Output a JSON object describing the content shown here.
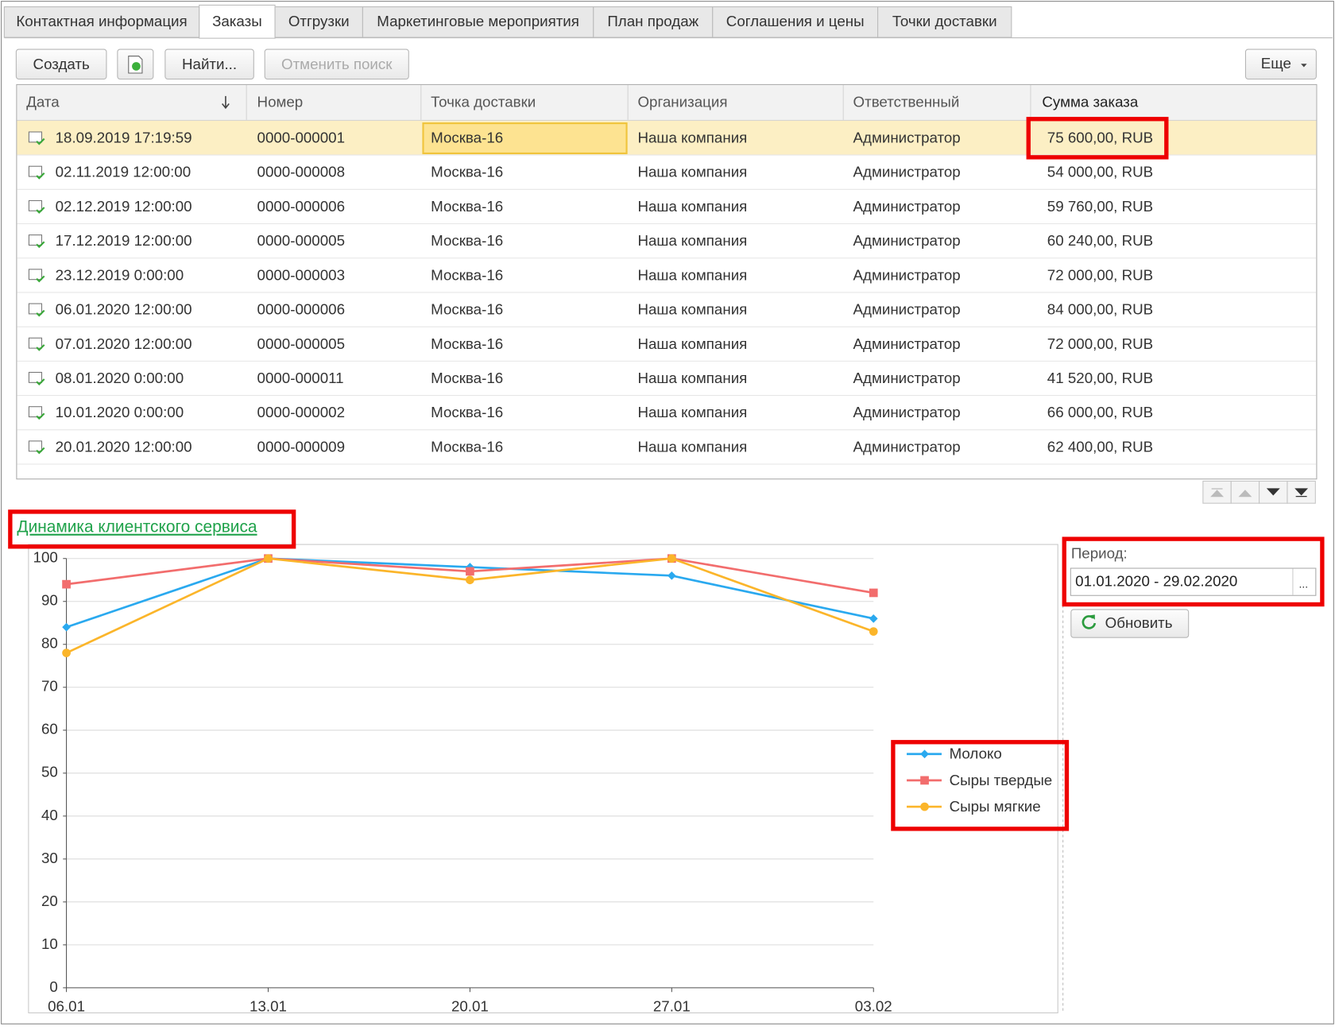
{
  "tabs": [
    "Контактная информация",
    "Заказы",
    "Отгрузки",
    "Маркетинговые мероприятия",
    "План продаж",
    "Соглашения и цены",
    "Точки доставки"
  ],
  "toolbar": {
    "create": "Создать",
    "find": "Найти...",
    "cancel_search": "Отменить поиск",
    "more": "Еще"
  },
  "table": {
    "columns": [
      "Дата",
      "Номер",
      "Точка доставки",
      "Организация",
      "Ответственный",
      "Сумма заказа"
    ],
    "rows": [
      [
        "18.09.2019 17:19:59",
        "0000-000001",
        "Москва-16",
        "Наша компания",
        "Администратор",
        "75 600,00, RUB"
      ],
      [
        "02.11.2019 12:00:00",
        "0000-000008",
        "Москва-16",
        "Наша компания",
        "Администратор",
        "54 000,00, RUB"
      ],
      [
        "02.12.2019 12:00:00",
        "0000-000006",
        "Москва-16",
        "Наша компания",
        "Администратор",
        "59 760,00, RUB"
      ],
      [
        "17.12.2019 12:00:00",
        "0000-000005",
        "Москва-16",
        "Наша компания",
        "Администратор",
        "60 240,00, RUB"
      ],
      [
        "23.12.2019 0:00:00",
        "0000-000003",
        "Москва-16",
        "Наша компания",
        "Администратор",
        "72 000,00, RUB"
      ],
      [
        "06.01.2020 12:00:00",
        "0000-000006",
        "Москва-16",
        "Наша компания",
        "Администратор",
        "84 000,00, RUB"
      ],
      [
        "07.01.2020 12:00:00",
        "0000-000005",
        "Москва-16",
        "Наша компания",
        "Администратор",
        "72 000,00, RUB"
      ],
      [
        "08.01.2020 0:00:00",
        "0000-000011",
        "Москва-16",
        "Наша компания",
        "Администратор",
        "41 520,00, RUB"
      ],
      [
        "10.01.2020 0:00:00",
        "0000-000002",
        "Москва-16",
        "Наша компания",
        "Администратор",
        "66 000,00, RUB"
      ],
      [
        "20.01.2020 12:00:00",
        "0000-000009",
        "Москва-16",
        "Наша компания",
        "Администратор",
        "62 400,00, RUB"
      ]
    ]
  },
  "chart_link": "Динамика клиентского сервиса",
  "period": {
    "label": "Период:",
    "value": "01.01.2020 - 29.02.2020",
    "picker": "..."
  },
  "refresh_button": "Обновить",
  "chart_data": {
    "type": "line",
    "categories": [
      "06.01",
      "13.01",
      "20.01",
      "27.01",
      "03.02"
    ],
    "series": [
      {
        "name": "Молоко",
        "color": "#2aa9ef",
        "marker": "diamond",
        "values": [
          84,
          100,
          98,
          96,
          86
        ]
      },
      {
        "name": "Сыры твердые",
        "color": "#f26d6d",
        "marker": "square",
        "values": [
          94,
          100,
          97,
          100,
          92
        ]
      },
      {
        "name": "Сыры мягкие",
        "color": "#fbb52a",
        "marker": "circle",
        "values": [
          78,
          100,
          95,
          100,
          83
        ]
      }
    ],
    "ylim": [
      0,
      100
    ],
    "yticks": [
      0,
      10,
      20,
      30,
      40,
      50,
      60,
      70,
      80,
      90,
      100
    ],
    "grid": true
  }
}
